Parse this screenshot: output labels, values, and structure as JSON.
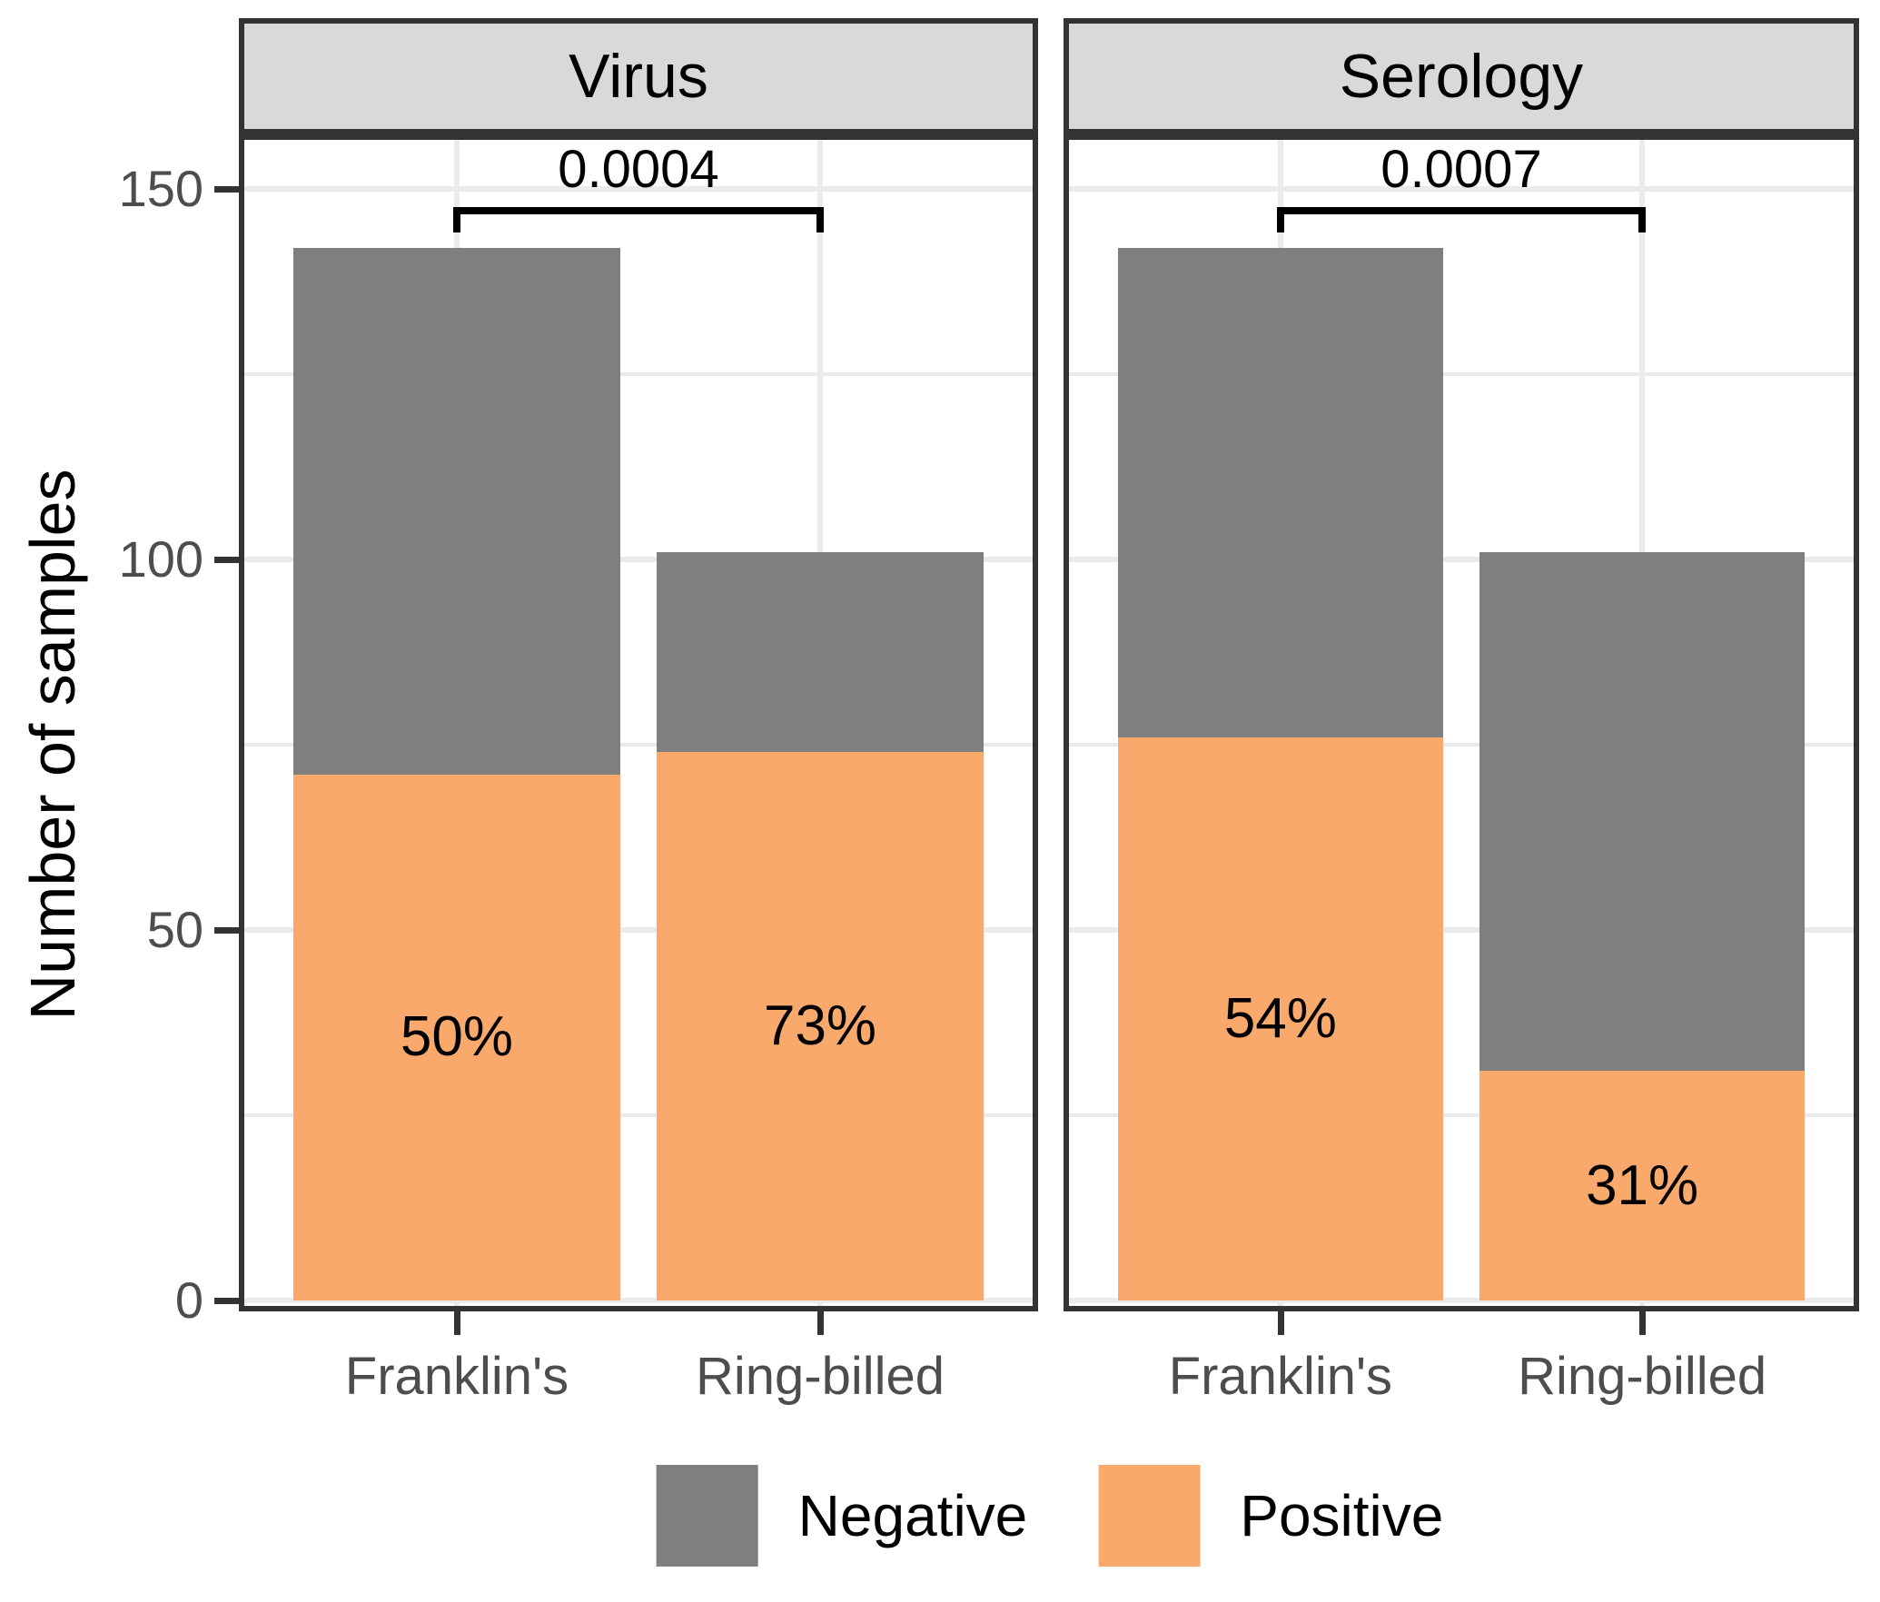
{
  "chart_data": {
    "type": "bar",
    "stacked": true,
    "ylabel": "Number of samples",
    "yticks": [
      0,
      50,
      100,
      150
    ],
    "minor_yticks": [
      25,
      75,
      125
    ],
    "ylim": [
      0,
      157
    ],
    "grid": true,
    "legend_position": "bottom",
    "categories": [
      "Franklin's",
      "Ring-billed"
    ],
    "series_colors": {
      "Negative": "#7f7f7f",
      "Positive": "#f8a96b"
    },
    "facets": [
      {
        "label": "Virus",
        "p_value": "0.0004",
        "categories": [
          "Franklin's",
          "Ring-billed"
        ],
        "series": [
          {
            "name": "Positive",
            "values": [
              71,
              74
            ]
          },
          {
            "name": "Negative",
            "values": [
              71,
              27
            ]
          }
        ],
        "totals": [
          142,
          101
        ],
        "percent_labels": [
          "50%",
          "73%"
        ]
      },
      {
        "label": "Serology",
        "p_value": "0.0007",
        "categories": [
          "Franklin's",
          "Ring-billed"
        ],
        "series": [
          {
            "name": "Positive",
            "values": [
              76,
              31
            ]
          },
          {
            "name": "Negative",
            "values": [
              66,
              70
            ]
          }
        ],
        "totals": [
          142,
          101
        ],
        "percent_labels": [
          "54%",
          "31%"
        ]
      }
    ],
    "legend": [
      {
        "label": "Negative",
        "color": "#7f7f7f"
      },
      {
        "label": "Positive",
        "color": "#f8a96b"
      }
    ]
  }
}
